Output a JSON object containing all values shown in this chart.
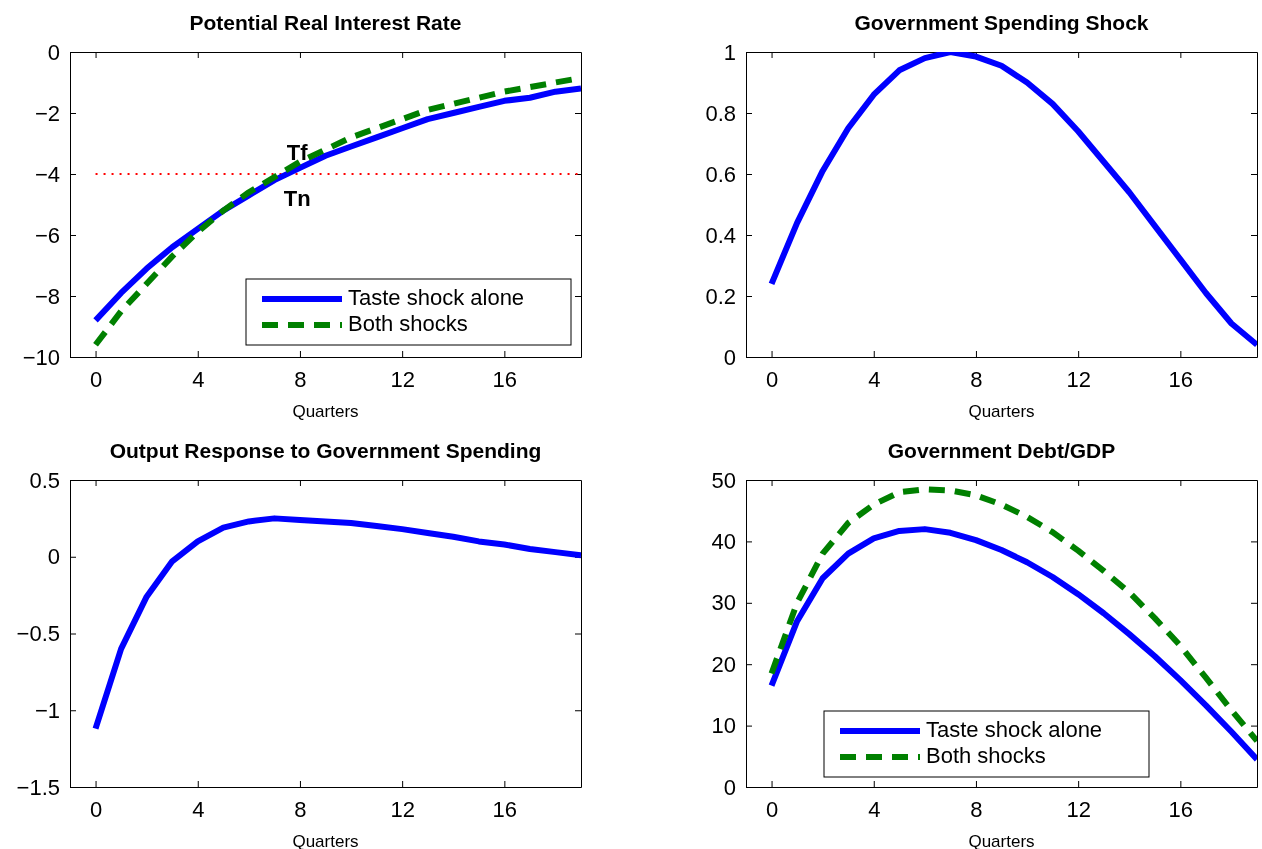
{
  "chart_data": [
    {
      "type": "line",
      "title": "Potential Real Interest Rate",
      "xlabel": "Quarters",
      "x": [
        0,
        1,
        2,
        3,
        4,
        5,
        6,
        7,
        8,
        9,
        10,
        11,
        12,
        13,
        14,
        15,
        16,
        17,
        18,
        19
      ],
      "xlim": [
        -1,
        19
      ],
      "xticks": [
        0,
        4,
        8,
        12,
        16
      ],
      "ylim": [
        -10,
        0
      ],
      "yticks": [
        {
          "value": -10,
          "label": "−10"
        },
        {
          "value": -8,
          "label": "−8"
        },
        {
          "value": -6,
          "label": "−6"
        },
        {
          "value": -4,
          "label": "−4"
        },
        {
          "value": -2,
          "label": "−2"
        },
        0
      ],
      "legend": "bottom right",
      "grid": false,
      "series": [
        {
          "name": "Taste shock alone",
          "color": "#0000ff",
          "line_style": "solid",
          "values": [
            -8.8,
            -7.9,
            -7.1,
            -6.4,
            -5.8,
            -5.2,
            -4.7,
            -4.2,
            -3.8,
            -3.4,
            -3.1,
            -2.8,
            -2.5,
            -2.2,
            -2.0,
            -1.8,
            -1.6,
            -1.5,
            -1.3,
            -1.2
          ]
        },
        {
          "name": "Both shocks",
          "color": "#008000",
          "line_style": "dashed",
          "values": [
            -9.6,
            -8.5,
            -7.6,
            -6.7,
            -5.9,
            -5.2,
            -4.6,
            -4.1,
            -3.6,
            -3.2,
            -2.8,
            -2.5,
            -2.2,
            -1.9,
            -1.7,
            -1.5,
            -1.3,
            -1.15,
            -1.0,
            -0.85
          ]
        }
      ],
      "ref_lines": [
        {
          "axis": "y",
          "value": -4,
          "color": "#ff0000",
          "line_style": "dotted"
        }
      ],
      "annotations": [
        "Tf",
        "Tn"
      ]
    },
    {
      "type": "line",
      "title": "Government Spending Shock",
      "xlabel": "Quarters",
      "x": [
        0,
        1,
        2,
        3,
        4,
        5,
        6,
        7,
        8,
        9,
        10,
        11,
        12,
        13,
        14,
        15,
        16,
        17,
        18,
        19
      ],
      "xlim": [
        -1,
        19
      ],
      "xticks": [
        0,
        4,
        8,
        12,
        16
      ],
      "ylim": [
        0,
        1
      ],
      "yticks": [
        0,
        0.2,
        0.4,
        0.6,
        0.8,
        1
      ],
      "grid": false,
      "series": [
        {
          "color": "#0000ff",
          "line_style": "solid",
          "values": [
            0.24,
            0.44,
            0.61,
            0.75,
            0.86,
            0.94,
            0.98,
            1.0,
            0.985,
            0.955,
            0.9,
            0.83,
            0.74,
            0.64,
            0.54,
            0.43,
            0.32,
            0.21,
            0.11,
            0.04
          ]
        }
      ]
    },
    {
      "type": "line",
      "title": "Output Response to Government Spending",
      "xlabel": "Quarters",
      "x": [
        0,
        1,
        2,
        3,
        4,
        5,
        6,
        7,
        8,
        9,
        10,
        11,
        12,
        13,
        14,
        15,
        16,
        17,
        18,
        19
      ],
      "xlim": [
        -1,
        19
      ],
      "xticks": [
        0,
        4,
        8,
        12,
        16
      ],
      "ylim": [
        -1.5,
        0.5
      ],
      "yticks": [
        {
          "value": -1.5,
          "label": "−1.5"
        },
        {
          "value": -1,
          "label": "−1"
        },
        {
          "value": -0.5,
          "label": "−0.5"
        },
        0,
        0.5
      ],
      "grid": false,
      "series": [
        {
          "color": "#0000ff",
          "line_style": "solid",
          "values": [
            -1.12,
            -0.6,
            -0.26,
            -0.03,
            0.1,
            0.19,
            0.23,
            0.25,
            0.24,
            0.23,
            0.22,
            0.2,
            0.18,
            0.155,
            0.13,
            0.1,
            0.08,
            0.05,
            0.03,
            0.01
          ]
        }
      ]
    },
    {
      "type": "line",
      "title": "Government Debt/GDP",
      "xlabel": "Quarters",
      "x": [
        0,
        1,
        2,
        3,
        4,
        5,
        6,
        7,
        8,
        9,
        10,
        11,
        12,
        13,
        14,
        15,
        16,
        17,
        18,
        19
      ],
      "xlim": [
        -1,
        19
      ],
      "xticks": [
        0,
        4,
        8,
        12,
        16
      ],
      "ylim": [
        0,
        50
      ],
      "yticks": [
        0,
        10,
        20,
        30,
        40,
        50
      ],
      "legend": "bottom",
      "grid": false,
      "series": [
        {
          "name": "Taste shock alone",
          "color": "#0000ff",
          "line_style": "solid",
          "values": [
            16.5,
            27,
            34,
            38,
            40.5,
            41.7,
            42,
            41.4,
            40.2,
            38.6,
            36.6,
            34.2,
            31.4,
            28.3,
            24.9,
            21.3,
            17.4,
            13.3,
            9,
            4.5
          ]
        },
        {
          "name": "Both shocks",
          "color": "#008000",
          "line_style": "dashed",
          "values": [
            18.5,
            30,
            38,
            43,
            46,
            48,
            48.5,
            48.3,
            47.5,
            46,
            44,
            41.5,
            38.5,
            35.2,
            31.7,
            27.5,
            23,
            17.8,
            12.5,
            7.5
          ]
        }
      ]
    }
  ]
}
